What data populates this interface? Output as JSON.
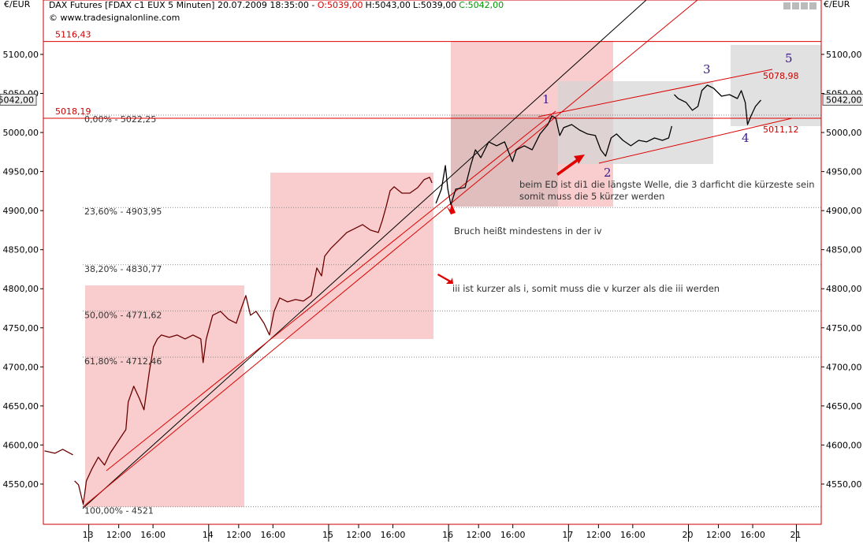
{
  "header": {
    "instrument": "DAX Futures [FDAX c1 EUX  5 Minuten] 20.07.2009 18:35:00 - ",
    "open": "O:5039,00",
    "high": "H:5043,00",
    "low": "L:5039,00",
    "close": "C:5042,00",
    "source": "© www.tradesignalonline.com"
  },
  "chart_data": {
    "type": "line",
    "currency": "€/EUR",
    "xlim": [
      -5.3,
      85.5
    ],
    "ylim": [
      4498.5,
      5169.6
    ],
    "xticks": [
      {
        "value": 0,
        "label": "13"
      },
      {
        "value": 3.5,
        "label": "12:00"
      },
      {
        "value": 7.5,
        "label": "16:00"
      },
      {
        "value": 14,
        "label": "14"
      },
      {
        "value": 17.5,
        "label": "12:00"
      },
      {
        "value": 21.5,
        "label": "16:00"
      },
      {
        "value": 28,
        "label": "15"
      },
      {
        "value": 31.5,
        "label": "12:00"
      },
      {
        "value": 35.5,
        "label": "16:00"
      },
      {
        "value": 42,
        "label": "16"
      },
      {
        "value": 45.5,
        "label": "12:00"
      },
      {
        "value": 49.5,
        "label": "16:00"
      },
      {
        "value": 56,
        "label": "17"
      },
      {
        "value": 59.5,
        "label": "12:00"
      },
      {
        "value": 63.5,
        "label": "16:00"
      },
      {
        "value": 70,
        "label": "20"
      },
      {
        "value": 73.5,
        "label": "12:00"
      },
      {
        "value": 77.5,
        "label": "16:00"
      },
      {
        "value": 82.6,
        "label": "21"
      }
    ],
    "yticks": [
      {
        "value": 4550,
        "label": "4550,00"
      },
      {
        "value": 4600,
        "label": "4600,00"
      },
      {
        "value": 4650,
        "label": "4650,00"
      },
      {
        "value": 4700,
        "label": "4700,00"
      },
      {
        "value": 4750,
        "label": "4750,00"
      },
      {
        "value": 4800,
        "label": "4800,00"
      },
      {
        "value": 4850,
        "label": "4850,00"
      },
      {
        "value": 4900,
        "label": "4900,00"
      },
      {
        "value": 4950,
        "label": "4950,00"
      },
      {
        "value": 5000,
        "label": "5000,00"
      },
      {
        "value": 5050,
        "label": "5050,00"
      },
      {
        "value": 5100,
        "label": "5100,00"
      }
    ],
    "last_price": {
      "value": 5042,
      "label": "5042,00"
    },
    "hlines": [
      {
        "value": 5116.43,
        "label": "5116,43"
      },
      {
        "value": 5018.19,
        "label": "5018,19"
      }
    ],
    "fib_levels": [
      {
        "value": 5022.25,
        "label": "0,00% - 5022,25"
      },
      {
        "value": 4903.95,
        "label": "23,60% - 4903,95"
      },
      {
        "value": 4830.77,
        "label": "38,20% - 4830,77"
      },
      {
        "value": 4771.62,
        "label": "50,00% - 4771,62"
      },
      {
        "value": 4712.46,
        "label": "61,80% - 4712,46"
      },
      {
        "value": 4521,
        "label": "100,00% - 4521"
      }
    ],
    "series": [
      {
        "color": "#6b0000",
        "x": [
          -5.16,
          -3.96,
          -3.04,
          -1.84,
          -1.75,
          -1.66,
          -1.2,
          -0.64,
          -0.28,
          0.37,
          1.11,
          1.84,
          2.49,
          3.41,
          4.33,
          4.61,
          5.25,
          5.89,
          6.45,
          7.09,
          7.55,
          8.01,
          8.47,
          9.39,
          10.32,
          11.24,
          12.16,
          13.08,
          13.35,
          13.72,
          14.46,
          15.38,
          16.3,
          17.22,
          17.68,
          18.33,
          18.88,
          19.53,
          20.45,
          21.09,
          21.64,
          22.29,
          23.21,
          24.13,
          25.05,
          25.97,
          26.62,
          27.17,
          27.54,
          28.27,
          29.2,
          30.12,
          31.04,
          31.96,
          32.88,
          33.8,
          34.26,
          34.72,
          35.18,
          35.64,
          36.56,
          37.48,
          38.41,
          39.14,
          39.79,
          40.06
        ],
        "values": [
          4592.5,
          4589.4,
          4594.5,
          4587.4,
          null,
          4554.1,
          4549.1,
          4523.9,
          4554.1,
          4569.3,
          4584.4,
          4574.3,
          4589.4,
          4604.6,
          4619.7,
          4655,
          4675.2,
          4660.1,
          4645,
          4695.4,
          4725.7,
          4735.8,
          4740.8,
          4737.8,
          4740.8,
          4735.8,
          4740.8,
          4735.8,
          4705.5,
          4735.8,
          4766,
          4771.1,
          4761,
          4755.9,
          4771.1,
          4791.3,
          4766,
          4771.1,
          4755.9,
          4740.8,
          4771.1,
          4788.2,
          4783.2,
          4786.2,
          4784.2,
          4791.3,
          4826.6,
          4816.5,
          4841.7,
          4851.8,
          4861.9,
          4872,
          4877,
          4882.1,
          4875,
          4872,
          4887.1,
          4905.3,
          4925.4,
          4930.5,
          4922.4,
          4922.4,
          4929.5,
          4939.6,
          4942.6,
          4935.5
        ]
      },
      {
        "color": "#000000",
        "x": [
          40.52,
          41.17,
          41.63,
          41.91,
          42.27,
          42.83,
          43.93,
          44.58,
          45.13,
          45.77,
          46.69,
          47.62,
          48.54,
          49.46,
          49.92,
          50.84,
          51.76,
          52.68,
          53.6,
          54.06,
          54.52,
          54.98,
          55.44,
          56.37,
          57.29,
          58.21,
          59.13,
          59.77,
          60.33,
          60.97,
          61.61,
          62.35,
          63.27,
          64.19,
          65.11,
          66.04,
          66.96,
          67.69,
          68.06,
          68.2,
          68.34,
          68.8,
          69.72,
          70.46,
          71.1,
          71.56,
          72.21,
          72.94,
          73.86,
          74.79,
          75.71,
          76.17,
          76.63,
          76.9,
          77.27,
          77.82,
          78.46
        ],
        "values": [
          4909.3,
          4927.5,
          4957.7,
          4927.5,
          4907.3,
          4927.5,
          4929.5,
          4957.7,
          4977.9,
          4967.8,
          4988,
          4983,
          4988,
          4962.8,
          4977.9,
          4983,
          4977.9,
          4998.1,
          5010.2,
          5021.3,
          5018.3,
          4996.1,
          5006.2,
          5010.2,
          5003.1,
          4998.1,
          4996.1,
          4977.9,
          4969.8,
          4993,
          4998.1,
          4990,
          4983,
          4990,
          4988,
          4993,
          4990,
          4993,
          5008.2,
          null,
          5048.5,
          5043.5,
          5038.5,
          5028.4,
          5033.4,
          5053.6,
          5060.6,
          5056.6,
          5046.5,
          5048.5,
          5043.5,
          5053.6,
          5038.5,
          5010.2,
          5020.3,
          5033.4,
          5041.5
        ]
      }
    ],
    "wave_labels": [
      "1",
      "2",
      "3",
      "4",
      "5"
    ],
    "wedge_labels": [
      "5078,98",
      "5011,12"
    ],
    "annotations": [
      "beim ED ist di1 die längste Welle, die 3 darficht die kürzeste sein",
      "somit muss die 5 kürzer werden",
      "Bruch heißt mindestens in der iv",
      "iii ist kurzer als i, somit muss die v kurzer als die iii werden"
    ]
  }
}
